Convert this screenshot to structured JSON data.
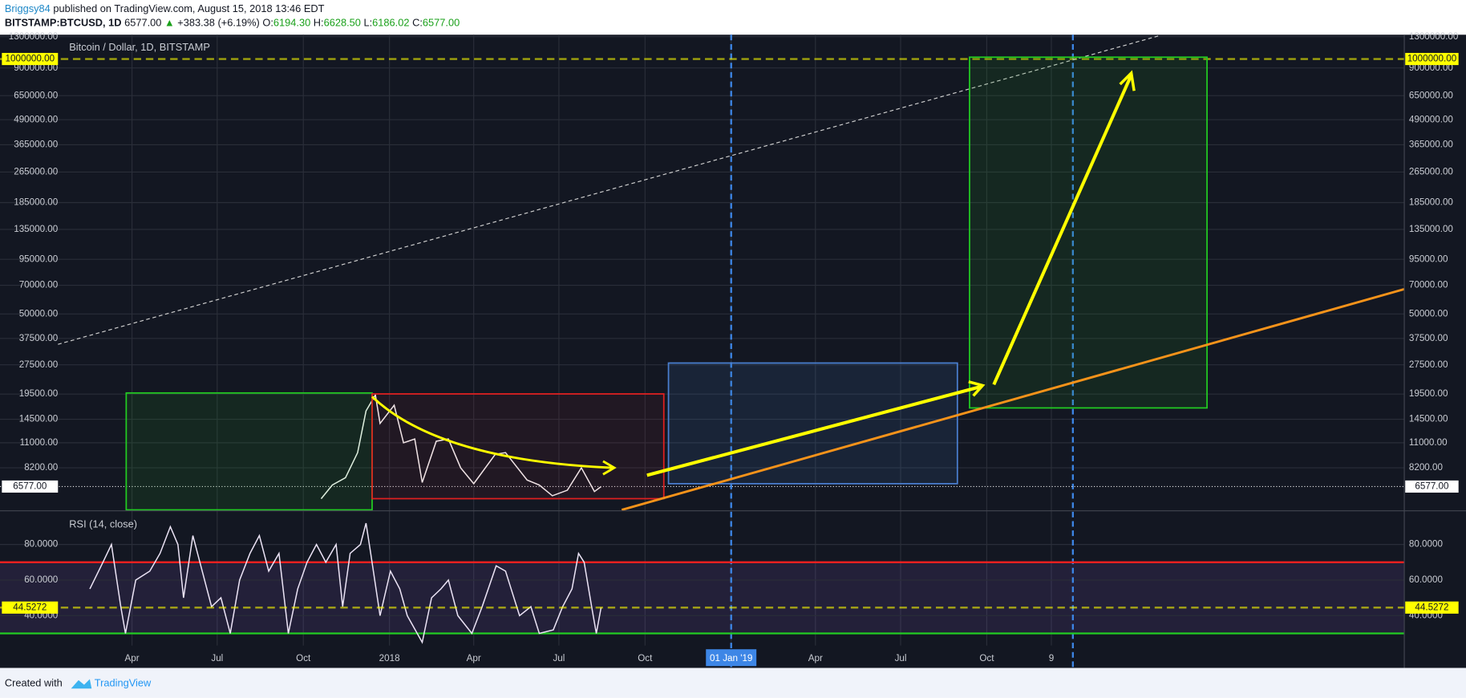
{
  "header": {
    "author": "Briggsy84",
    "published": "published on TradingView.com, August 15, 2018 13:46 EDT",
    "symbol": "BITSTAMP:BTCUSD, 1D",
    "last": "6577.00",
    "arrow": "▲",
    "change": "+383.38 (+6.19%)",
    "open_label": "O:",
    "open": "6194.30",
    "high_label": "H:",
    "high": "6628.50",
    "low_label": "L:",
    "low": "6186.02",
    "close_label": "C:",
    "close": "6577.00"
  },
  "chart_data": [
    {
      "type": "line",
      "title": "Bitcoin / Dollar, 1D, BITSTAMP",
      "log": true,
      "grid": true,
      "xlim": [
        "2016-11-11",
        "2020-12-20"
      ],
      "xticks": [
        {
          "value": "2017-04-01",
          "label": "Apr"
        },
        {
          "value": "2017-07-01",
          "label": "Jul"
        },
        {
          "value": "2017-10-01",
          "label": "Oct"
        },
        {
          "value": "2018-01-01",
          "label": "2018"
        },
        {
          "value": "2018-04-01",
          "label": "Apr"
        },
        {
          "value": "2018-07-01",
          "label": "Jul"
        },
        {
          "value": "2018-10-01",
          "label": "Oct"
        },
        {
          "value": "2019-01-01",
          "label": "01 Jan '19"
        },
        {
          "value": "2019-04-01",
          "label": "Apr"
        },
        {
          "value": "2019-07-01",
          "label": "Jul"
        },
        {
          "value": "2019-10-01",
          "label": "Oct"
        },
        {
          "value": "2019-12-09",
          "label": "9"
        }
      ],
      "vlines": [
        "2019-01-01",
        "2020-01-01"
      ],
      "vline_color": "#3d86e6",
      "ylim": [
        5000,
        1330000
      ],
      "yticks": [
        {
          "value": 1300000,
          "label": "1300000.00"
        },
        {
          "value": 900000,
          "label": "900000.00"
        },
        {
          "value": 650000,
          "label": "650000.00"
        },
        {
          "value": 490000,
          "label": "490000.00"
        },
        {
          "value": 365000,
          "label": "365000.00"
        },
        {
          "value": 265000,
          "label": "265000.00"
        },
        {
          "value": 185000,
          "label": "185000.00"
        },
        {
          "value": 135000,
          "label": "135000.00"
        },
        {
          "value": 95000,
          "label": "95000.00"
        },
        {
          "value": 70000,
          "label": "70000.00"
        },
        {
          "value": 50000,
          "label": "50000.00"
        },
        {
          "value": 37500,
          "label": "37500.00"
        },
        {
          "value": 27500,
          "label": "27500.00"
        },
        {
          "value": 19500,
          "label": "19500.00"
        },
        {
          "value": 14500,
          "label": "14500.00"
        },
        {
          "value": 11000,
          "label": "11000.00"
        },
        {
          "value": 8200,
          "label": "8200.00"
        }
      ],
      "markers": [
        {
          "value": 1000000,
          "label": "1000000.00",
          "color": "#ffff00",
          "line": "dashed"
        },
        {
          "value": 6577,
          "label": "6577.00",
          "color": "#ffffff",
          "line": "dotted"
        }
      ],
      "color": "#ffffff",
      "x": [
        "2017-10-20",
        "2017-11-01",
        "2017-11-15",
        "2017-11-28",
        "2017-12-07",
        "2017-12-17",
        "2017-12-22",
        "2018-01-06",
        "2018-01-16",
        "2018-01-28",
        "2018-02-05",
        "2018-02-20",
        "2018-03-05",
        "2018-03-18",
        "2018-04-01",
        "2018-04-24",
        "2018-05-05",
        "2018-05-28",
        "2018-06-10",
        "2018-06-24",
        "2018-07-10",
        "2018-07-25",
        "2018-08-08",
        "2018-08-15"
      ],
      "values": [
        5700,
        6700,
        7300,
        9800,
        16000,
        19300,
        13800,
        17100,
        11000,
        11500,
        6900,
        11200,
        11500,
        8200,
        6800,
        9600,
        9800,
        7100,
        6700,
        5900,
        6300,
        8200,
        6200,
        6577
      ]
    },
    {
      "type": "line",
      "title": "RSI (14, close)",
      "log": false,
      "grid": true,
      "ylim": [
        23.2,
        98.4
      ],
      "yticks": [
        {
          "value": 80,
          "label": "80.0000"
        },
        {
          "value": 60,
          "label": "60.0000"
        },
        {
          "value": 40,
          "label": "40.0000"
        }
      ],
      "levels": [
        {
          "value": 70,
          "color": "#ff2020"
        },
        {
          "value": 30,
          "color": "#22cc22"
        }
      ],
      "band_color": "#7e57c2",
      "markers": [
        {
          "value": 44.5272,
          "label": "44.5272",
          "color": "#ffff00",
          "line": "dashed"
        }
      ],
      "color": "#ebe3f5",
      "x": [
        "2017-02-15",
        "2017-03-01",
        "2017-03-10",
        "2017-03-20",
        "2017-03-25",
        "2017-04-05",
        "2017-04-20",
        "2017-05-01",
        "2017-05-12",
        "2017-05-20",
        "2017-05-26",
        "2017-06-05",
        "2017-06-15",
        "2017-06-25",
        "2017-07-05",
        "2017-07-15",
        "2017-07-25",
        "2017-08-05",
        "2017-08-15",
        "2017-08-25",
        "2017-09-05",
        "2017-09-15",
        "2017-09-25",
        "2017-10-05",
        "2017-10-15",
        "2017-10-25",
        "2017-11-05",
        "2017-11-12",
        "2017-11-20",
        "2017-12-01",
        "2017-12-07",
        "2017-12-12",
        "2017-12-22",
        "2018-01-02",
        "2018-01-12",
        "2018-01-20",
        "2018-02-05",
        "2018-02-15",
        "2018-02-25",
        "2018-03-05",
        "2018-03-15",
        "2018-03-30",
        "2018-04-10",
        "2018-04-25",
        "2018-05-05",
        "2018-05-20",
        "2018-06-01",
        "2018-06-10",
        "2018-06-25",
        "2018-07-05",
        "2018-07-15",
        "2018-07-22",
        "2018-07-28",
        "2018-08-05",
        "2018-08-10",
        "2018-08-15"
      ],
      "values": [
        55,
        70,
        80,
        45,
        30,
        60,
        65,
        75,
        90,
        80,
        50,
        85,
        65,
        45,
        50,
        30,
        60,
        75,
        85,
        65,
        75,
        30,
        55,
        70,
        80,
        70,
        80,
        45,
        75,
        80,
        92,
        75,
        40,
        65,
        55,
        40,
        25,
        50,
        55,
        60,
        40,
        30,
        45,
        68,
        65,
        40,
        45,
        30,
        32,
        45,
        55,
        75,
        70,
        45,
        30,
        44.5272
      ]
    }
  ],
  "footer": {
    "created": "Created with",
    "brand": "TradingView"
  }
}
